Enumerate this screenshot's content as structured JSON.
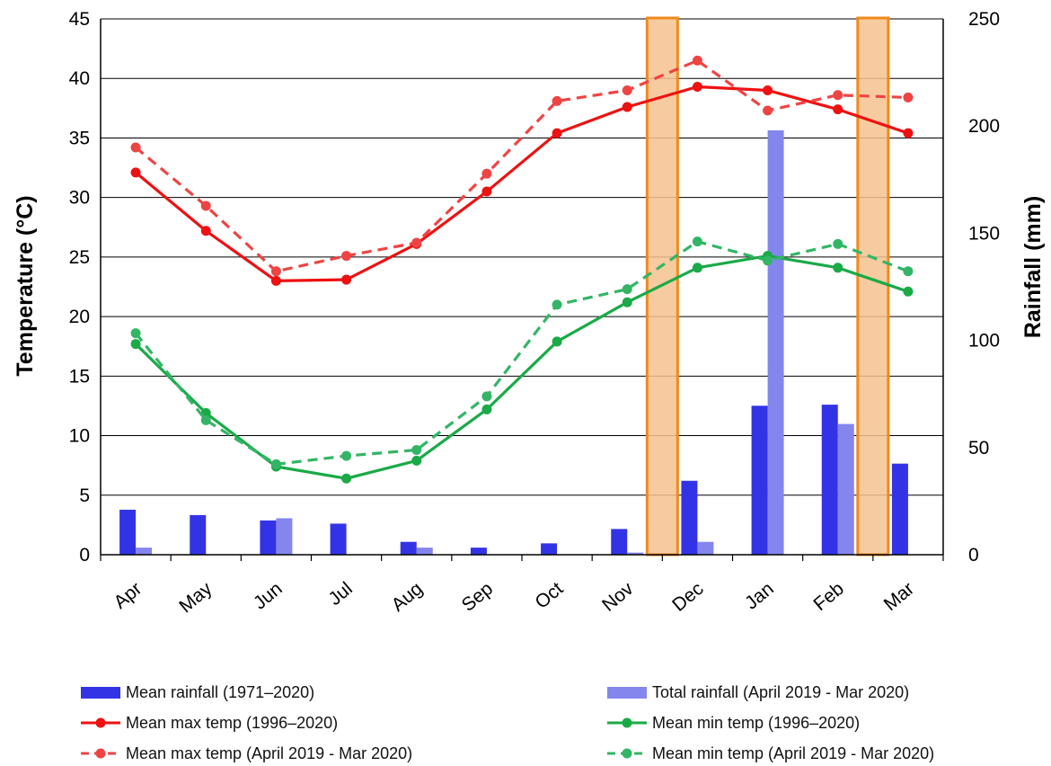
{
  "chart_data": {
    "type": "bar+line",
    "title": "",
    "categories": [
      "Apr",
      "May",
      "Jun",
      "Jul",
      "Aug",
      "Sep",
      "Oct",
      "Nov",
      "Dec",
      "Jan",
      "Feb",
      "Mar"
    ],
    "left_axis": {
      "label": "Temperature (°C)",
      "range": [
        0,
        45
      ],
      "ticks": [
        0,
        5,
        10,
        15,
        20,
        25,
        30,
        35,
        40,
        45
      ]
    },
    "right_axis": {
      "label": "Rainfall (mm)",
      "range": [
        0,
        250
      ],
      "ticks": [
        0,
        50,
        100,
        150,
        200,
        250
      ]
    },
    "grid": "horizontal",
    "legend_placement": "bottom",
    "highlight_bands": [
      {
        "between": [
          "Nov",
          "Dec"
        ],
        "color": "#f5c28f",
        "border": "#f08a1c"
      },
      {
        "between": [
          "Feb",
          "Mar"
        ],
        "color": "#f5c28f",
        "border": "#f08a1c"
      }
    ],
    "series": [
      {
        "name": "Mean rainfall (1971–2020)",
        "kind": "bar",
        "axis": "right",
        "color": "#3333e6",
        "values": [
          21,
          18.5,
          16,
          14.5,
          6,
          3.3,
          5.3,
          12,
          34.5,
          69.5,
          70,
          42.5
        ]
      },
      {
        "name": "Total rainfall (April 2019 - Mar 2020)",
        "kind": "bar",
        "axis": "right",
        "color": "#8585ee",
        "values": [
          3.3,
          0,
          17,
          0,
          3.3,
          0,
          0,
          1,
          6,
          198,
          61,
          0
        ]
      },
      {
        "name": "Mean max temp (1996–2020)",
        "kind": "line",
        "style": "solid",
        "axis": "left",
        "color": "#ee1111",
        "values": [
          32.1,
          27.2,
          23,
          23.1,
          26.1,
          30.5,
          35.4,
          37.6,
          39.3,
          39,
          37.4,
          35.4
        ]
      },
      {
        "name": "Mean min temp (1996–2020)",
        "kind": "line",
        "style": "solid",
        "axis": "left",
        "color": "#1aaa47",
        "values": [
          17.7,
          11.9,
          7.4,
          6.4,
          7.9,
          12.2,
          17.9,
          21.2,
          24.1,
          25.1,
          24.1,
          22.1
        ]
      },
      {
        "name": "Mean max temp (April 2019 - Mar 2020)",
        "kind": "line",
        "style": "dashed",
        "axis": "left",
        "color": "#ee4444",
        "values": [
          34.2,
          29.3,
          23.8,
          25.1,
          26.2,
          32,
          38.1,
          39,
          41.5,
          37.3,
          38.6,
          38.4
        ]
      },
      {
        "name": "Mean min temp (April 2019 - Mar 2020)",
        "kind": "line",
        "style": "dashed",
        "axis": "left",
        "color": "#33b566",
        "values": [
          18.6,
          11.3,
          7.6,
          8.3,
          8.8,
          13.3,
          21,
          22.3,
          26.3,
          24.7,
          26.1,
          23.8
        ]
      }
    ]
  }
}
